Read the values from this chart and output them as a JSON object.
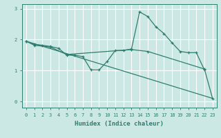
{
  "xlabel": "Humidex (Indice chaleur)",
  "bg_color": "#cce8e4",
  "grid_color": "#ffffff",
  "line_color": "#2e7d6e",
  "line1_x": [
    0,
    1,
    2,
    3,
    4,
    5,
    6,
    7,
    8,
    9,
    10,
    11,
    12,
    13,
    14,
    15,
    16,
    17,
    18,
    19,
    20,
    21,
    22
  ],
  "line1_y": [
    1.95,
    1.85,
    1.82,
    1.78,
    1.72,
    1.5,
    1.5,
    1.45,
    1.02,
    1.02,
    1.3,
    1.65,
    1.65,
    1.7,
    2.9,
    2.75,
    2.42,
    2.2,
    1.9,
    1.62,
    1.58,
    1.58,
    1.02
  ],
  "line2_x": [
    0,
    23
  ],
  "line2_y": [
    1.95,
    0.1
  ],
  "line3_x": [
    0,
    1,
    3,
    5,
    13,
    15,
    22,
    23
  ],
  "line3_y": [
    1.95,
    1.82,
    1.76,
    1.52,
    1.68,
    1.62,
    1.05,
    0.1
  ],
  "xlim": [
    -0.5,
    23.5
  ],
  "ylim": [
    -0.2,
    3.15
  ],
  "yticks": [
    0,
    1,
    2,
    3
  ],
  "xticks": [
    0,
    1,
    2,
    3,
    4,
    5,
    6,
    7,
    8,
    9,
    10,
    11,
    12,
    13,
    14,
    15,
    16,
    17,
    18,
    19,
    20,
    21,
    22,
    23
  ]
}
